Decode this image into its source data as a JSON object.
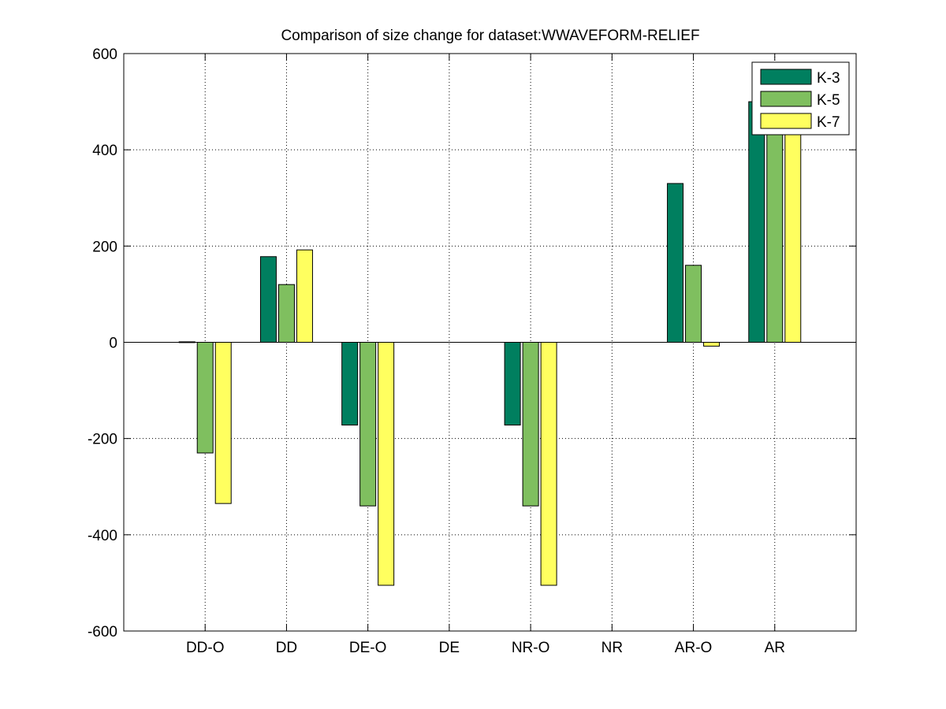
{
  "chart_data": {
    "type": "bar",
    "title": "Comparison of size change for dataset:WWAVEFORM-RELIEF",
    "xlabel": "",
    "ylabel": "",
    "categories": [
      "DD-O",
      "DD",
      "DE-O",
      "DE",
      "NR-O",
      "NR",
      "AR-O",
      "AR"
    ],
    "ylim": [
      -600,
      600
    ],
    "yticks": [
      -600,
      -400,
      -200,
      0,
      200,
      400,
      600
    ],
    "grid": true,
    "legend_position": "top-right",
    "series": [
      {
        "name": "K-3",
        "color": "#007f5f",
        "values": [
          1,
          178,
          -172,
          0,
          -172,
          0,
          330,
          500
        ]
      },
      {
        "name": "K-5",
        "color": "#7fbf5f",
        "values": [
          -230,
          120,
          -340,
          0,
          -340,
          0,
          160,
          500
        ]
      },
      {
        "name": "K-7",
        "color": "#ffff5f",
        "values": [
          -335,
          192,
          -505,
          0,
          -505,
          0,
          -8,
          500
        ]
      }
    ]
  }
}
